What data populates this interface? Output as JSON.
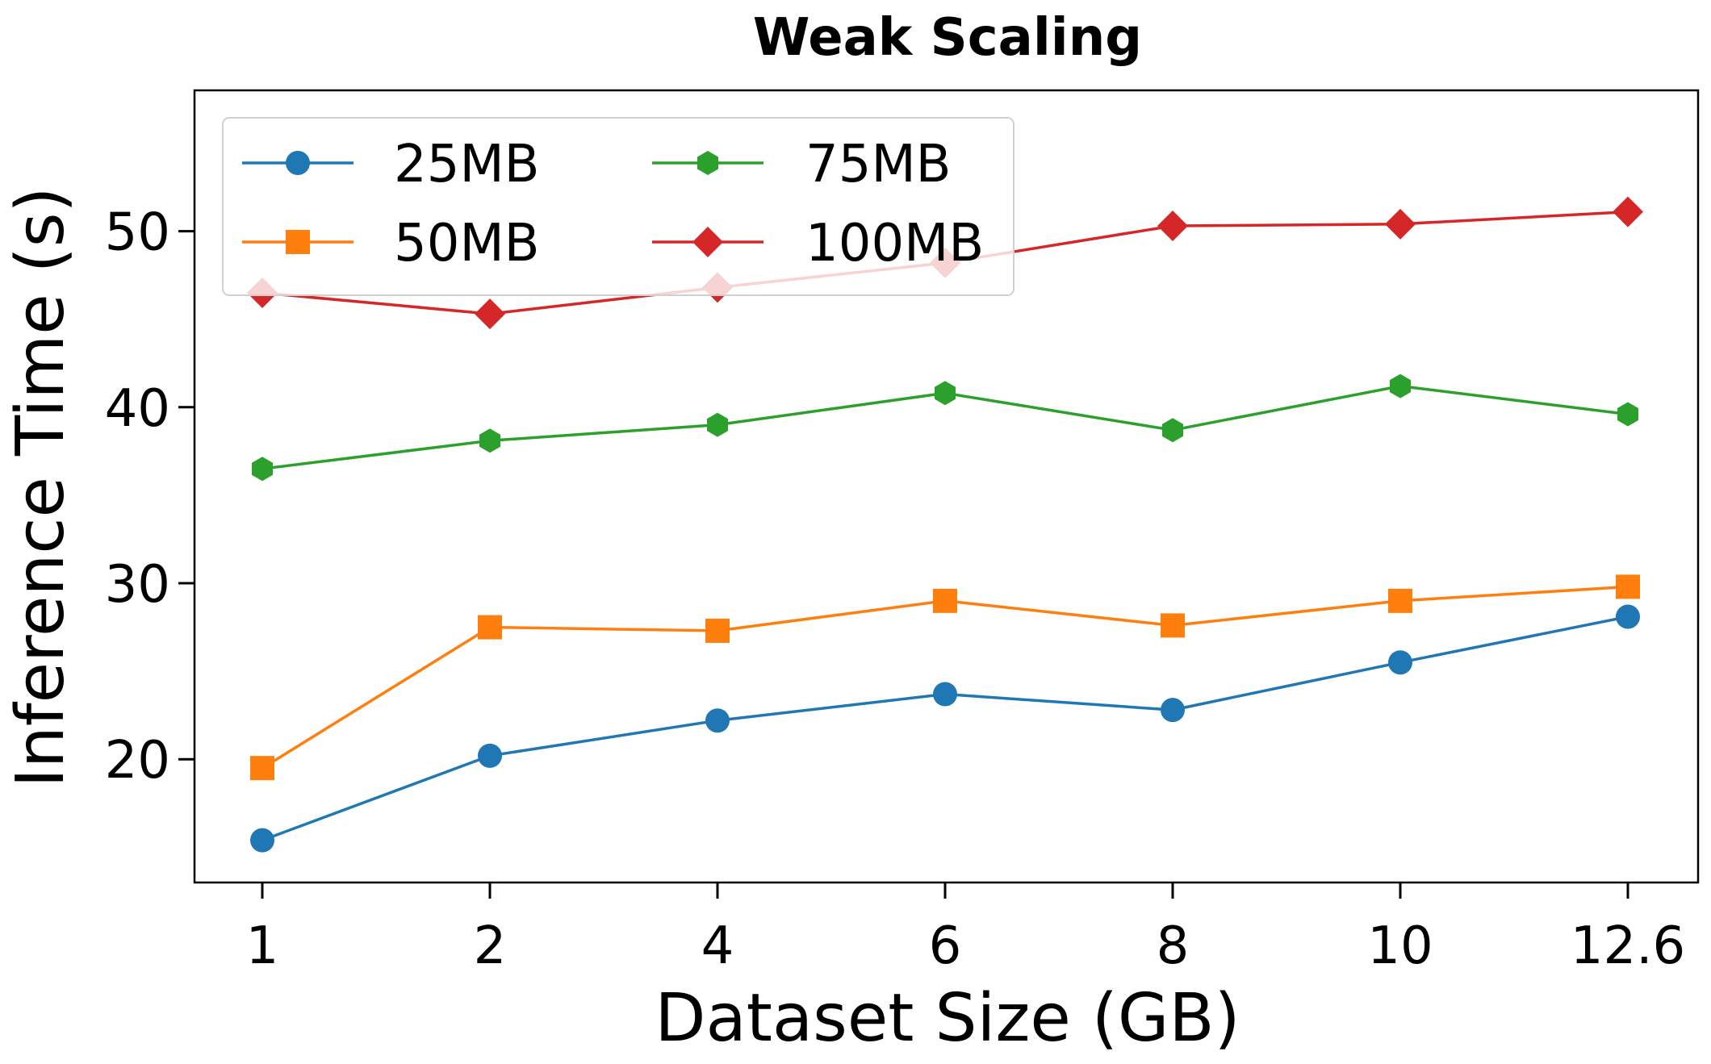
{
  "chart_data": {
    "type": "line",
    "title": "Weak Scaling",
    "xlabel": "Dataset Size (GB)",
    "ylabel": "Inference Time (s)",
    "categories": [
      "1",
      "2",
      "4",
      "6",
      "8",
      "10",
      "12.6"
    ],
    "ylim": [
      13,
      58
    ],
    "yticks": [
      20,
      30,
      40,
      50
    ],
    "grid": false,
    "legend_position": "top-left",
    "legend_columns": 2,
    "series": [
      {
        "name": "25MB",
        "color": "#1f77b4",
        "marker": "circle",
        "values": [
          15.4,
          20.2,
          22.2,
          23.7,
          22.8,
          25.5,
          28.1
        ]
      },
      {
        "name": "50MB",
        "color": "#ff7f0e",
        "marker": "square",
        "values": [
          19.5,
          27.5,
          27.3,
          29.0,
          27.6,
          29.0,
          29.8
        ]
      },
      {
        "name": "75MB",
        "color": "#2ca02c",
        "marker": "hexagon",
        "values": [
          36.5,
          38.1,
          39.0,
          40.8,
          38.7,
          41.2,
          39.6
        ]
      },
      {
        "name": "100MB",
        "color": "#d62728",
        "marker": "diamond",
        "values": [
          46.5,
          45.3,
          46.8,
          48.2,
          50.3,
          50.4,
          51.1
        ]
      }
    ]
  }
}
